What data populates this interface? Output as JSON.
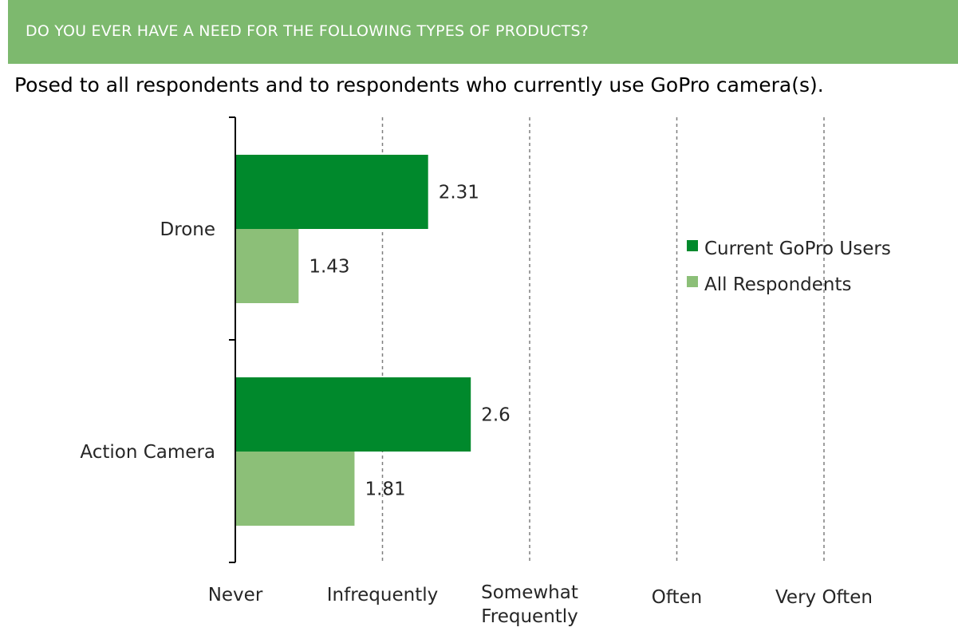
{
  "header": {
    "title": "DO YOU EVER HAVE A NEED FOR THE FOLLOWING TYPES OF PRODUCTS?",
    "band_color": "#7db96e"
  },
  "subtitle": "Posed to all respondents and to respondents who currently use GoPro camera(s).",
  "chart_data": {
    "type": "bar",
    "orientation": "horizontal",
    "categories": [
      "Drone",
      "Action Camera"
    ],
    "series": [
      {
        "name": "Current GoPro Users",
        "color": "#00892c",
        "values": [
          2.31,
          2.6
        ]
      },
      {
        "name": "All Respondents",
        "color": "#8cbf78",
        "values": [
          1.43,
          1.81
        ]
      }
    ],
    "x_ticks": [
      {
        "value": 1,
        "label": [
          "Never"
        ]
      },
      {
        "value": 2,
        "label": [
          "Infrequently"
        ]
      },
      {
        "value": 3,
        "label": [
          "Somewhat",
          "Frequently"
        ]
      },
      {
        "value": 4,
        "label": [
          "Often"
        ]
      },
      {
        "value": 5,
        "label": [
          "Very Often"
        ]
      }
    ],
    "xlim": [
      1,
      5
    ],
    "grid": "vertical dashed",
    "legend_position": "right"
  }
}
